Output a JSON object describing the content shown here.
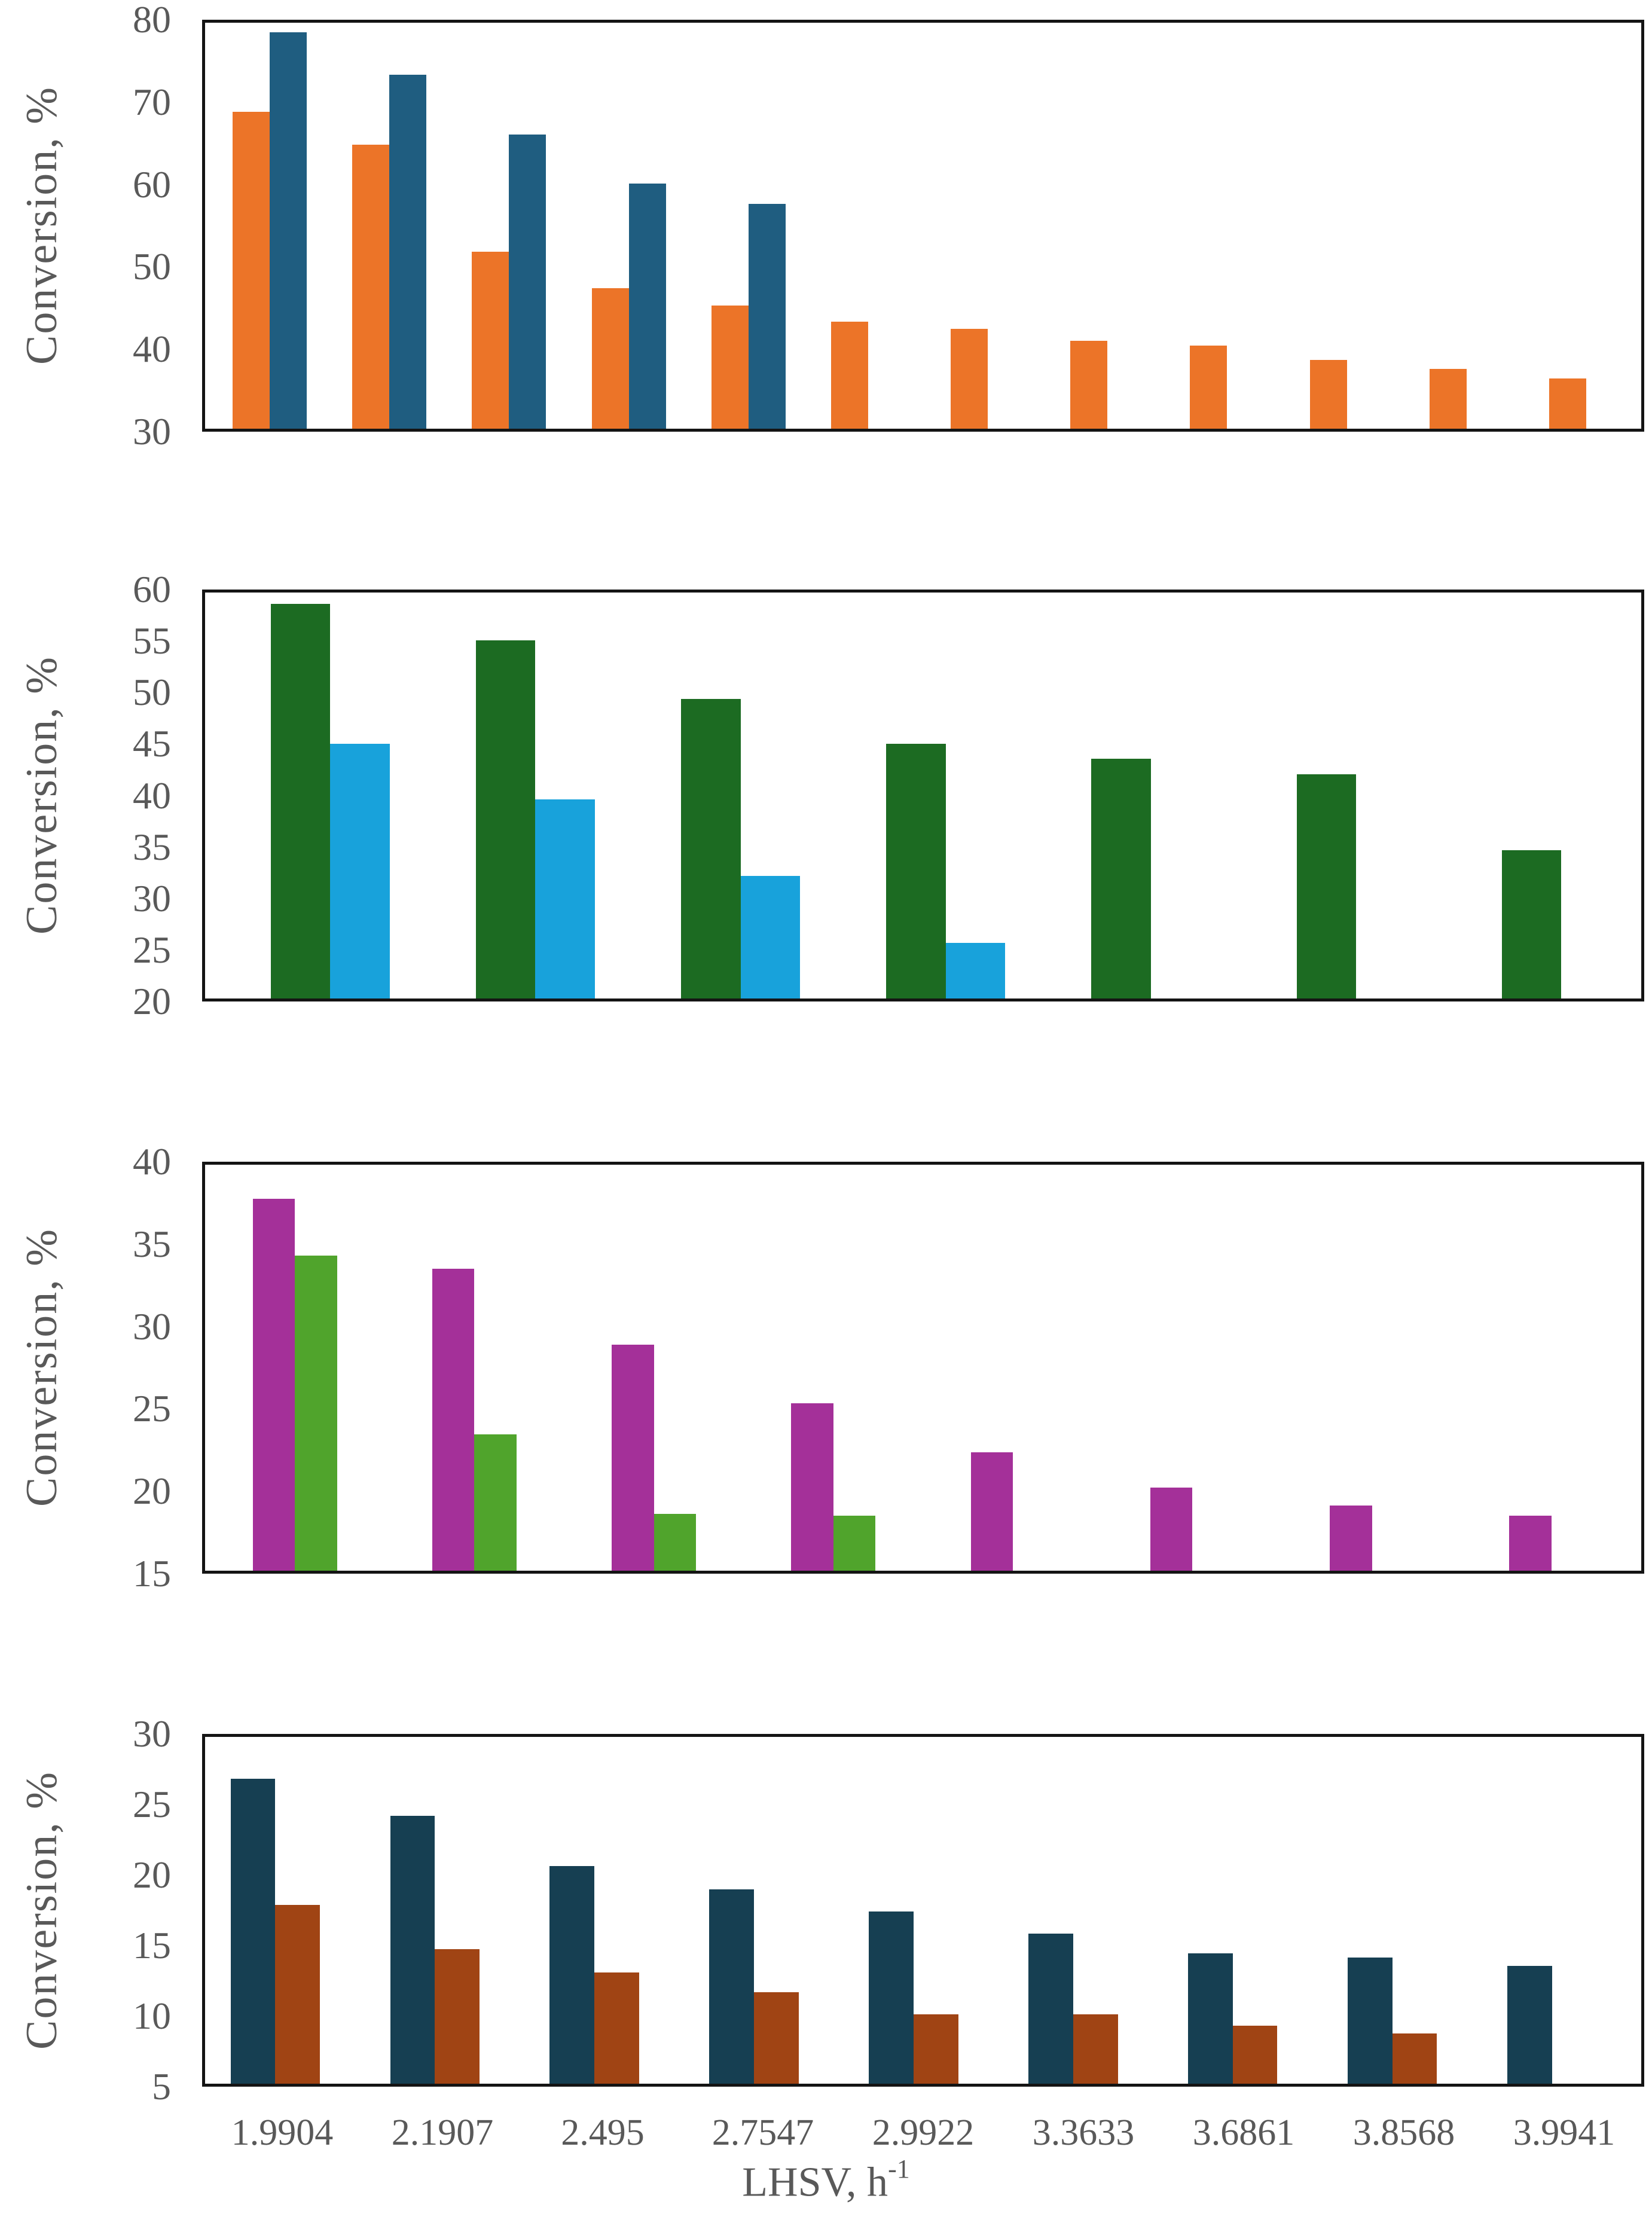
{
  "figure": {
    "y_axis_title": "Conversion, %",
    "x_axis_title_text": "LHSV, h",
    "x_axis_title_sup": "-1",
    "text_color": "#595959",
    "border_color": "#141414",
    "background_color": "#ffffff"
  },
  "x_tick_labels": [
    "1.9904",
    "2.1907",
    "2.495",
    "2.7547",
    "2.9922",
    "3.3633",
    "3.6861",
    "3.8568",
    "3.9941"
  ],
  "chart_data": [
    {
      "type": "bar",
      "panel": 1,
      "title": "",
      "xlabel": "",
      "ylabel": "Conversion, %",
      "ylim": [
        30,
        80
      ],
      "yticks": [
        30,
        40,
        50,
        60,
        70,
        80
      ],
      "grid": false,
      "legend": "none",
      "group_count": 12,
      "categories": null,
      "series": [
        {
          "name": "orange-series",
          "color": "#EC7428",
          "values": [
            69.0,
            65.0,
            51.8,
            47.3,
            45.2,
            43.2,
            42.3,
            40.8,
            40.2,
            38.5,
            37.4,
            36.2
          ]
        },
        {
          "name": "dark-blue-series",
          "color": "#1F5D80",
          "values": [
            78.8,
            73.6,
            66.2,
            60.2,
            57.7,
            null,
            null,
            null,
            null,
            null,
            null,
            null
          ]
        }
      ]
    },
    {
      "type": "bar",
      "panel": 2,
      "title": "",
      "xlabel": "",
      "ylabel": "Conversion, %",
      "ylim": [
        20,
        60
      ],
      "yticks": [
        20,
        25,
        30,
        35,
        40,
        45,
        50,
        55,
        60
      ],
      "grid": false,
      "legend": "none",
      "group_count": 7,
      "categories": null,
      "series": [
        {
          "name": "dark-green-series",
          "color": "#1C6B22",
          "values": [
            58.9,
            55.3,
            49.5,
            45.1,
            43.6,
            42.1,
            34.6
          ]
        },
        {
          "name": "light-blue-series",
          "color": "#18A2DB",
          "values": [
            45.1,
            39.6,
            32.1,
            25.5,
            null,
            null,
            null
          ]
        }
      ]
    },
    {
      "type": "bar",
      "panel": 3,
      "title": "",
      "xlabel": "",
      "ylabel": "Conversion, %",
      "ylim": [
        15,
        40
      ],
      "yticks": [
        15,
        20,
        25,
        30,
        35,
        40
      ],
      "grid": false,
      "legend": "none",
      "group_count": 8,
      "categories": null,
      "series": [
        {
          "name": "magenta-series",
          "color": "#A43099",
          "values": [
            37.9,
            33.6,
            28.9,
            25.3,
            22.3,
            20.1,
            19.0,
            18.4
          ]
        },
        {
          "name": "green-series",
          "color": "#50A42C",
          "values": [
            34.4,
            23.4,
            18.5,
            18.4,
            null,
            null,
            null,
            null
          ]
        }
      ]
    },
    {
      "type": "bar",
      "panel": 4,
      "title": "",
      "xlabel": "LHSV, h⁻¹",
      "ylabel": "Conversion, %",
      "ylim": [
        5,
        30
      ],
      "yticks": [
        5,
        10,
        15,
        20,
        25,
        30
      ],
      "grid": false,
      "legend": "none",
      "group_count": 9,
      "categories": [
        "1.9904",
        "2.1907",
        "2.495",
        "2.7547",
        "2.9922",
        "3.3633",
        "3.6861",
        "3.8568",
        "3.9941"
      ],
      "series": [
        {
          "name": "navy-series",
          "color": "#163F52",
          "values": [
            27.0,
            24.3,
            20.7,
            19.0,
            17.4,
            15.8,
            14.4,
            14.1,
            13.5
          ]
        },
        {
          "name": "rust-series",
          "color": "#A04414",
          "values": [
            17.9,
            14.7,
            13.0,
            11.6,
            10.0,
            10.0,
            9.2,
            8.6,
            null
          ]
        }
      ]
    }
  ]
}
